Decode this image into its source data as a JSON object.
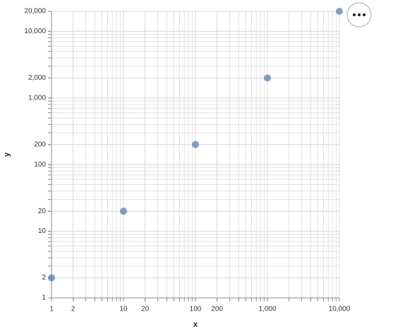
{
  "chart_data": {
    "type": "scatter",
    "x_label": "x",
    "y_label": "y",
    "x": [
      1,
      10,
      100,
      1000,
      10000
    ],
    "series": [
      {
        "values": [
          2,
          20,
          200,
          2000,
          20000
        ],
        "color": "#4c78a8"
      }
    ],
    "opacity": 0.7,
    "xscale": "log",
    "yscale": "log",
    "xlim": [
      1,
      10000
    ],
    "ylim": [
      1,
      20000
    ],
    "xticks": [
      1,
      2,
      10,
      20,
      100,
      200,
      {
        "value": 1000,
        "label": "1,000"
      },
      {
        "value": 10000,
        "label": "10,000"
      }
    ],
    "yticks": [
      1,
      2,
      10,
      20,
      100,
      200,
      {
        "value": 1000,
        "label": "1,000"
      },
      {
        "value": 2000,
        "label": "2,000"
      },
      {
        "value": 10000,
        "label": "10,000"
      },
      {
        "value": 20000,
        "label": "20,000"
      }
    ],
    "grid": true
  }
}
